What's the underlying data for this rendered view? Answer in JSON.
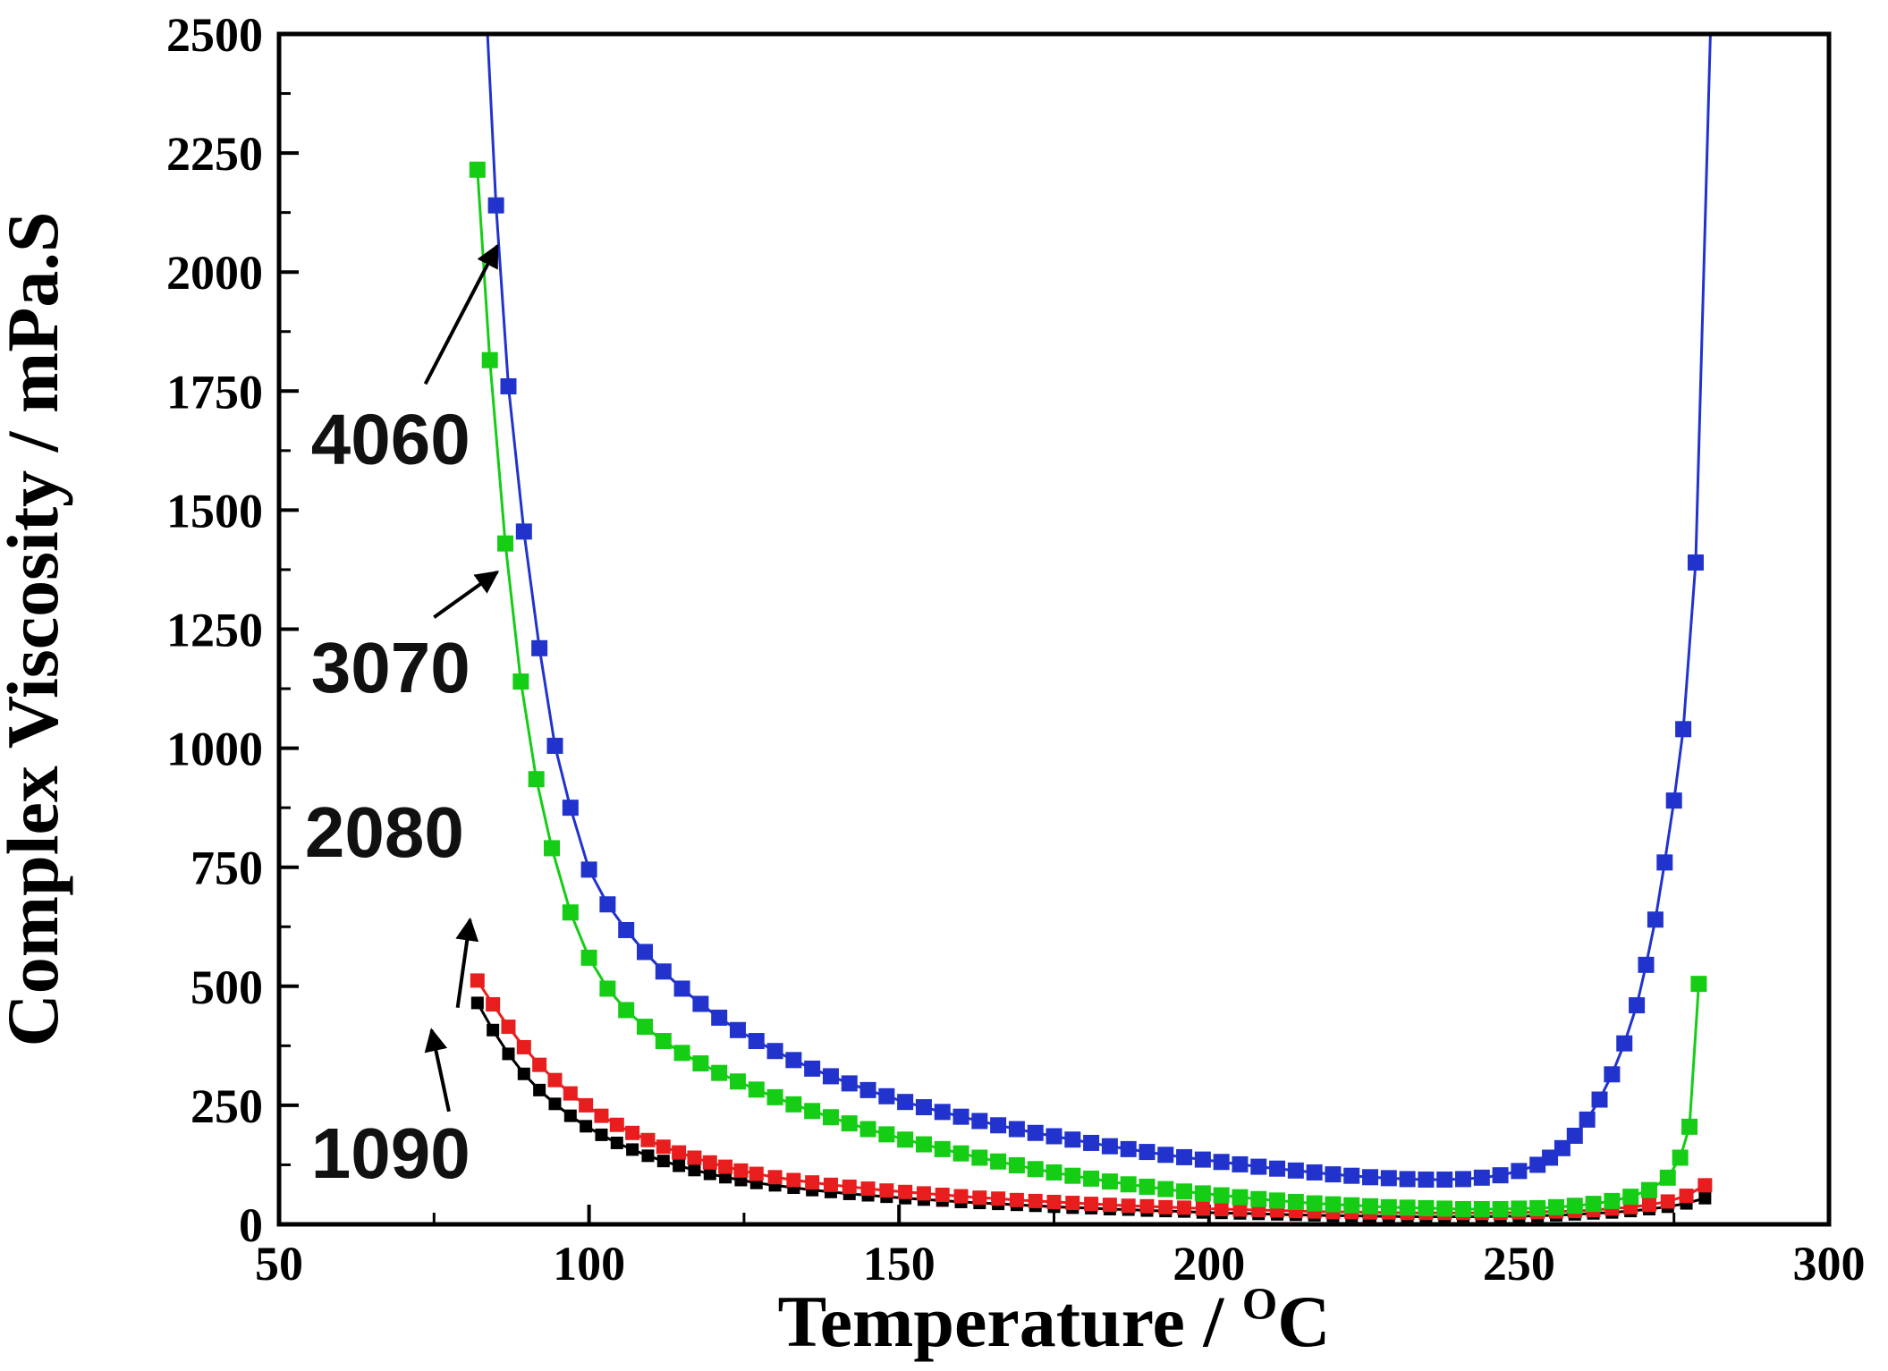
{
  "figure": {
    "background": "#ffffff"
  },
  "chart_data": {
    "type": "line",
    "title": "",
    "xlabel": "Temperature / °C",
    "xlabel_parts": {
      "main": "Temperature / ",
      "sup": "O",
      "end": "C"
    },
    "ylabel": "Complex Viscosity / mPa.S",
    "xlim": [
      50,
      300
    ],
    "ylim": [
      0,
      2500
    ],
    "grid": false,
    "legend_position": "none",
    "axis_color": "#000000",
    "x_ticks": [
      50,
      100,
      150,
      200,
      250,
      300
    ],
    "x_tick_labels": [
      "50",
      "100",
      "150",
      "200",
      "250",
      "300"
    ],
    "x_minor_ticks": [
      75,
      125,
      175,
      225,
      275
    ],
    "y_ticks": [
      0,
      250,
      500,
      750,
      1000,
      1250,
      1500,
      1750,
      2000,
      2250,
      2500
    ],
    "y_tick_labels": [
      "0",
      "250",
      "500",
      "750",
      "1000",
      "1250",
      "1500",
      "1750",
      "2000",
      "2250",
      "2500"
    ],
    "y_minor_ticks": [
      125,
      375,
      625,
      875,
      1125,
      1375,
      1625,
      1875,
      2125,
      2375
    ],
    "series": [
      {
        "name": "1090",
        "color": "#000000",
        "marker": "square",
        "marker_size": 14,
        "points": [
          [
            82,
            465
          ],
          [
            84.5,
            408
          ],
          [
            87,
            358
          ],
          [
            89.5,
            316
          ],
          [
            92,
            282
          ],
          [
            94.5,
            253
          ],
          [
            97,
            228
          ],
          [
            99.5,
            206
          ],
          [
            102,
            188
          ],
          [
            104.5,
            171
          ],
          [
            107,
            157
          ],
          [
            109.5,
            144
          ],
          [
            112,
            133
          ],
          [
            114.5,
            123
          ],
          [
            117,
            114
          ],
          [
            119.5,
            106
          ],
          [
            122,
            99
          ],
          [
            124.5,
            93
          ],
          [
            127,
            87
          ],
          [
            130,
            82
          ],
          [
            133,
            77
          ],
          [
            136,
            72
          ],
          [
            139,
            68
          ],
          [
            142,
            64
          ],
          [
            145,
            61
          ],
          [
            148,
            58
          ],
          [
            151,
            55
          ],
          [
            154,
            52
          ],
          [
            157,
            50
          ],
          [
            160,
            47
          ],
          [
            163,
            45
          ],
          [
            166,
            43
          ],
          [
            169,
            41
          ],
          [
            172,
            39
          ],
          [
            175,
            37
          ],
          [
            178,
            35
          ],
          [
            181,
            34
          ],
          [
            184,
            32
          ],
          [
            187,
            31
          ],
          [
            190,
            29
          ],
          [
            193,
            28
          ],
          [
            196,
            27
          ],
          [
            199,
            25
          ],
          [
            202,
            24
          ],
          [
            205,
            23
          ],
          [
            208,
            22
          ],
          [
            211,
            21
          ],
          [
            214,
            20
          ],
          [
            217,
            19
          ],
          [
            220,
            18
          ],
          [
            223,
            18
          ],
          [
            226,
            17
          ],
          [
            229,
            17
          ],
          [
            232,
            16
          ],
          [
            235,
            16
          ],
          [
            238,
            16
          ],
          [
            241,
            16
          ],
          [
            244,
            16
          ],
          [
            247,
            17
          ],
          [
            250,
            17
          ],
          [
            253,
            18
          ],
          [
            256,
            19
          ],
          [
            259,
            21
          ],
          [
            262,
            23
          ],
          [
            265,
            25
          ],
          [
            268,
            28
          ],
          [
            271,
            32
          ],
          [
            274,
            37
          ],
          [
            277,
            44
          ],
          [
            280,
            55
          ]
        ]
      },
      {
        "name": "2080",
        "color": "#e81e1e",
        "marker": "square",
        "marker_size": 16,
        "points": [
          [
            82,
            512
          ],
          [
            84.5,
            462
          ],
          [
            87,
            415
          ],
          [
            89.5,
            372
          ],
          [
            92,
            335
          ],
          [
            94.5,
            303
          ],
          [
            97,
            275
          ],
          [
            99.5,
            250
          ],
          [
            102,
            228
          ],
          [
            104.5,
            209
          ],
          [
            107,
            192
          ],
          [
            109.5,
            177
          ],
          [
            112,
            163
          ],
          [
            114.5,
            151
          ],
          [
            117,
            140
          ],
          [
            119.5,
            130
          ],
          [
            122,
            121
          ],
          [
            124.5,
            113
          ],
          [
            127,
            106
          ],
          [
            130,
            99
          ],
          [
            133,
            93
          ],
          [
            136,
            88
          ],
          [
            139,
            83
          ],
          [
            142,
            79
          ],
          [
            145,
            75
          ],
          [
            148,
            71
          ],
          [
            151,
            68
          ],
          [
            154,
            65
          ],
          [
            157,
            62
          ],
          [
            160,
            59
          ],
          [
            163,
            56
          ],
          [
            166,
            54
          ],
          [
            169,
            51
          ],
          [
            172,
            49
          ],
          [
            175,
            47
          ],
          [
            178,
            45
          ],
          [
            181,
            43
          ],
          [
            184,
            41
          ],
          [
            187,
            39
          ],
          [
            190,
            38
          ],
          [
            193,
            36
          ],
          [
            196,
            35
          ],
          [
            199,
            33
          ],
          [
            202,
            32
          ],
          [
            205,
            31
          ],
          [
            208,
            30
          ],
          [
            211,
            29
          ],
          [
            214,
            28
          ],
          [
            217,
            27
          ],
          [
            220,
            26
          ],
          [
            223,
            26
          ],
          [
            226,
            25
          ],
          [
            229,
            25
          ],
          [
            232,
            24
          ],
          [
            235,
            24
          ],
          [
            238,
            24
          ],
          [
            241,
            24
          ],
          [
            244,
            24
          ],
          [
            247,
            24
          ],
          [
            250,
            25
          ],
          [
            253,
            26
          ],
          [
            256,
            27
          ],
          [
            259,
            28
          ],
          [
            262,
            30
          ],
          [
            265,
            33
          ],
          [
            268,
            36
          ],
          [
            271,
            41
          ],
          [
            274,
            48
          ],
          [
            277,
            60
          ],
          [
            280,
            82
          ]
        ]
      },
      {
        "name": "3070",
        "color": "#15cd15",
        "marker": "square",
        "marker_size": 18,
        "points": [
          [
            82,
            2215
          ],
          [
            84,
            1815
          ],
          [
            86.5,
            1430
          ],
          [
            89,
            1140
          ],
          [
            91.5,
            935
          ],
          [
            94,
            790
          ],
          [
            97,
            655
          ],
          [
            100,
            560
          ],
          [
            103,
            495
          ],
          [
            106,
            450
          ],
          [
            109,
            415
          ],
          [
            112,
            385
          ],
          [
            115,
            360
          ],
          [
            118,
            338
          ],
          [
            121,
            318
          ],
          [
            124,
            300
          ],
          [
            127,
            283
          ],
          [
            130,
            267
          ],
          [
            133,
            252
          ],
          [
            136,
            238
          ],
          [
            139,
            225
          ],
          [
            142,
            212
          ],
          [
            145,
            200
          ],
          [
            148,
            189
          ],
          [
            151,
            178
          ],
          [
            154,
            168
          ],
          [
            157,
            158
          ],
          [
            160,
            149
          ],
          [
            163,
            140
          ],
          [
            166,
            132
          ],
          [
            169,
            124
          ],
          [
            172,
            116
          ],
          [
            175,
            109
          ],
          [
            178,
            102
          ],
          [
            181,
            96
          ],
          [
            184,
            90
          ],
          [
            187,
            84
          ],
          [
            190,
            79
          ],
          [
            193,
            74
          ],
          [
            196,
            69
          ],
          [
            199,
            65
          ],
          [
            202,
            61
          ],
          [
            205,
            57
          ],
          [
            208,
            53
          ],
          [
            211,
            50
          ],
          [
            214,
            47
          ],
          [
            217,
            44
          ],
          [
            220,
            42
          ],
          [
            223,
            40
          ],
          [
            226,
            38
          ],
          [
            229,
            36
          ],
          [
            232,
            35
          ],
          [
            235,
            34
          ],
          [
            238,
            33
          ],
          [
            241,
            32
          ],
          [
            244,
            32
          ],
          [
            247,
            32
          ],
          [
            250,
            33
          ],
          [
            253,
            34
          ],
          [
            256,
            36
          ],
          [
            259,
            39
          ],
          [
            262,
            43
          ],
          [
            265,
            49
          ],
          [
            268,
            58
          ],
          [
            271,
            72
          ],
          [
            274,
            98
          ],
          [
            276,
            140
          ],
          [
            277.5,
            205
          ],
          [
            279,
            505
          ]
        ]
      },
      {
        "name": "4060",
        "color": "#2133cc",
        "marker": "square",
        "marker_size": 18,
        "points": [
          [
            83.4,
            2560
          ],
          [
            85,
            2140
          ],
          [
            87,
            1760
          ],
          [
            89.5,
            1455
          ],
          [
            92,
            1210
          ],
          [
            94.5,
            1005
          ],
          [
            97,
            875
          ],
          [
            100,
            745
          ],
          [
            103,
            672
          ],
          [
            106,
            618
          ],
          [
            109,
            572
          ],
          [
            112,
            531
          ],
          [
            115,
            495
          ],
          [
            118,
            463
          ],
          [
            121,
            434
          ],
          [
            124,
            408
          ],
          [
            127,
            385
          ],
          [
            130,
            364
          ],
          [
            133,
            345
          ],
          [
            136,
            327
          ],
          [
            139,
            311
          ],
          [
            142,
            296
          ],
          [
            145,
            282
          ],
          [
            148,
            269
          ],
          [
            151,
            257
          ],
          [
            154,
            246
          ],
          [
            157,
            236
          ],
          [
            160,
            226
          ],
          [
            163,
            217
          ],
          [
            166,
            208
          ],
          [
            169,
            200
          ],
          [
            172,
            192
          ],
          [
            175,
            185
          ],
          [
            178,
            178
          ],
          [
            181,
            171
          ],
          [
            184,
            164
          ],
          [
            187,
            158
          ],
          [
            190,
            152
          ],
          [
            193,
            146
          ],
          [
            196,
            141
          ],
          [
            199,
            136
          ],
          [
            202,
            131
          ],
          [
            205,
            126
          ],
          [
            208,
            121
          ],
          [
            211,
            117
          ],
          [
            214,
            113
          ],
          [
            217,
            109
          ],
          [
            220,
            105
          ],
          [
            223,
            102
          ],
          [
            226,
            99
          ],
          [
            229,
            97
          ],
          [
            232,
            95
          ],
          [
            235,
            94
          ],
          [
            238,
            94
          ],
          [
            241,
            95
          ],
          [
            244,
            98
          ],
          [
            247,
            103
          ],
          [
            250,
            112
          ],
          [
            253,
            125
          ],
          [
            255,
            140
          ],
          [
            257,
            160
          ],
          [
            259,
            186
          ],
          [
            261,
            220
          ],
          [
            263,
            262
          ],
          [
            265,
            315
          ],
          [
            267,
            380
          ],
          [
            269,
            460
          ],
          [
            270.5,
            545
          ],
          [
            272,
            640
          ],
          [
            273.5,
            760
          ],
          [
            275,
            890
          ],
          [
            276.5,
            1040
          ],
          [
            278.5,
            1390
          ],
          [
            281,
            2560
          ]
        ]
      }
    ],
    "annotations": [
      {
        "label": "4060",
        "x": 68,
        "y": 1650,
        "arrow_from": [
          73.6,
          1765
        ],
        "arrow_to": [
          85.2,
          2055
        ]
      },
      {
        "label": "3070",
        "x": 68,
        "y": 1170,
        "arrow_from": [
          75,
          1275
        ],
        "arrow_to": [
          85.2,
          1370
        ]
      },
      {
        "label": "2080",
        "x": 67,
        "y": 825,
        "arrow_from": [
          78.8,
          455
        ],
        "arrow_to": [
          80.8,
          640
        ]
      },
      {
        "label": "1090",
        "x": 68,
        "y": 150,
        "arrow_from": [
          77.4,
          237
        ],
        "arrow_to": [
          74.6,
          408
        ]
      }
    ]
  }
}
